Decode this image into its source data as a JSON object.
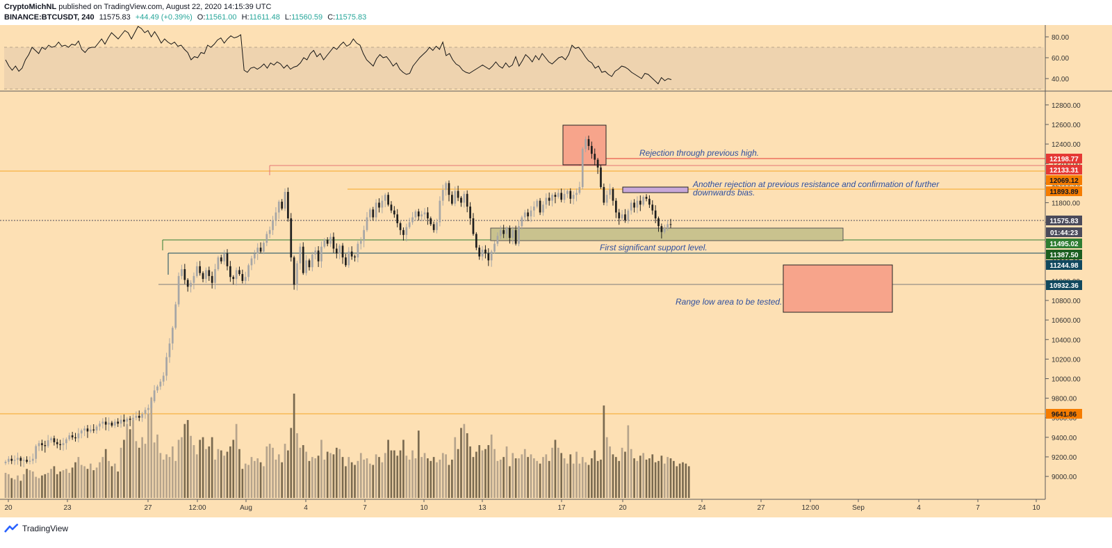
{
  "header": {
    "author": "CryptoMichNL",
    "published_text": "published on TradingView.com, August 22, 2020 14:15:39 UTC",
    "symbol": "BINANCE:BTCUSDT, 240",
    "last": "11575.83",
    "change": "+44.49 (+0.39%)",
    "o_label": "O:",
    "o_value": "11561.00",
    "h_label": "H:",
    "h_value": "11611.48",
    "l_label": "L:",
    "l_value": "11560.59",
    "c_label": "C:",
    "c_value": "11575.83"
  },
  "footer": {
    "brand": "TradingView"
  },
  "colors": {
    "background": "#fde0b4",
    "bull": "#a6a6a6",
    "bear": "#1e1e1e",
    "annotation": "#2f4f9e",
    "resistance": "#e53935",
    "support": "#1b5e20"
  },
  "chart_data": [
    {
      "type": "line",
      "panel": "RSI",
      "y_ticks": [
        "80.00",
        "60.00",
        "40.00"
      ],
      "ylim": [
        30,
        90
      ],
      "band": [
        30,
        70
      ],
      "values": [
        58,
        52,
        48,
        52,
        47,
        50,
        58,
        63,
        70,
        67,
        64,
        70,
        68,
        72,
        70,
        71,
        75,
        71,
        72,
        70,
        73,
        72,
        76,
        68,
        65,
        69,
        70,
        70,
        74,
        78,
        73,
        79,
        84,
        81,
        78,
        82,
        86,
        84,
        78,
        84,
        90,
        88,
        84,
        86,
        80,
        85,
        80,
        74,
        78,
        75,
        73,
        75,
        71,
        72,
        68,
        65,
        58,
        61,
        60,
        65,
        64,
        72,
        70,
        73,
        77,
        79,
        74,
        78,
        81,
        79,
        80,
        82,
        48,
        46,
        50,
        51,
        49,
        51,
        54,
        50,
        55,
        53,
        56,
        54,
        50,
        53,
        49,
        51,
        52,
        55,
        60,
        58,
        64,
        67,
        61,
        64,
        58,
        62,
        66,
        70,
        68,
        72,
        75,
        71,
        73,
        78,
        74,
        72,
        64,
        58,
        55,
        52,
        59,
        63,
        60,
        61,
        57,
        52,
        55,
        49,
        46,
        44,
        45,
        52,
        56,
        60,
        63,
        66,
        70,
        67,
        71,
        68,
        75,
        62,
        64,
        58,
        54,
        52,
        48,
        46,
        45,
        47,
        49,
        51,
        53,
        51,
        49,
        52,
        56,
        52,
        50,
        55,
        51,
        53,
        61,
        52,
        57,
        63,
        60,
        56,
        62,
        58,
        64,
        60,
        56,
        54,
        57,
        60,
        61,
        58,
        63,
        72,
        69,
        70,
        66,
        61,
        57,
        55,
        50,
        52,
        46,
        47,
        44,
        42,
        47,
        49,
        52,
        51,
        49,
        46,
        44,
        42,
        40,
        45,
        44,
        41,
        38,
        35,
        41,
        38,
        40,
        39
      ]
    },
    {
      "type": "candlestick",
      "panel": "price",
      "y_ticks": [
        "12800.00",
        "12600.00",
        "12400.00",
        "12200.00",
        "12000.00",
        "11800.00",
        "11600.00",
        "11400.00",
        "11200.00",
        "11000.00",
        "10800.00",
        "10600.00",
        "10400.00",
        "10200.00",
        "10000.00",
        "9800.00",
        "9600.00",
        "9400.00",
        "9200.00",
        "9000.00"
      ],
      "ylim": [
        8780,
        12920
      ],
      "x_ticks": [
        "20",
        "23",
        "27",
        "12:00",
        "Aug",
        "4",
        "7",
        "10",
        "13",
        "17",
        "20",
        "24",
        "27",
        "12:00",
        "Sep",
        "4",
        "7",
        "10"
      ],
      "price_labels": [
        {
          "value": 12198.77,
          "label": "12198.77",
          "color": "#e53935"
        },
        {
          "value": 12133.31,
          "label": "12133.31",
          "color": "#e53935"
        },
        {
          "value": 12069.12,
          "label": "12069.12",
          "color": "#f57c00"
        },
        {
          "value": 11893.89,
          "label": "11893.89",
          "color": "#f57c00"
        },
        {
          "value": 11575.83,
          "label": "11575.83",
          "color": "#4a4a5a"
        },
        {
          "value": 11495.02,
          "label": "01:44:23",
          "color": "#4a4a5a"
        },
        {
          "value": 11387.5,
          "label": "11495.02",
          "color": "#2e7d32"
        },
        {
          "value": 11244.98,
          "label": "11387.50",
          "color": "#1b5e20"
        },
        {
          "value": 11100.0,
          "label": "11244.98",
          "color": "#10485e"
        },
        {
          "value": 10932.36,
          "label": "10932.36",
          "color": "#10485e"
        },
        {
          "value": 9641.86,
          "label": "9641.86",
          "color": "#f57c00"
        }
      ],
      "annotations": [
        "Rejection through previous high.",
        "Another rejection at previous resistance and confirmation of further",
        "downwards bias.",
        "First significant support level.",
        "Range low area to be tested."
      ],
      "closes": [
        9150,
        9180,
        9160,
        9170,
        9190,
        9160,
        9170,
        9150,
        9160,
        9180,
        9310,
        9340,
        9320,
        9310,
        9370,
        9390,
        9350,
        9330,
        9320,
        9340,
        9380,
        9420,
        9400,
        9390,
        9440,
        9470,
        9490,
        9460,
        9480,
        9470,
        9510,
        9540,
        9560,
        9530,
        9550,
        9520,
        9560,
        9540,
        9580,
        9560,
        9590,
        9580,
        9600,
        9620,
        9600,
        9640,
        9680,
        9700,
        9770,
        9880,
        9920,
        9970,
        10030,
        10220,
        10360,
        10520,
        10760,
        11050,
        11120,
        11010,
        10940,
        10980,
        11050,
        11150,
        11080,
        11020,
        11110,
        11050,
        10980,
        11120,
        11240,
        11200,
        11280,
        11150,
        11040,
        11020,
        11110,
        11070,
        11000,
        11040,
        11160,
        11230,
        11280,
        11340,
        11300,
        11390,
        11480,
        11520,
        11620,
        11700,
        11810,
        11740,
        11910,
        11640,
        11240,
        10960,
        11180,
        11350,
        11080,
        11210,
        11140,
        11270,
        11310,
        11200,
        11350,
        11420,
        11380,
        11450,
        11330,
        11280,
        11360,
        11240,
        11160,
        11300,
        11250,
        11240,
        11380,
        11410,
        11520,
        11650,
        11730,
        11650,
        11800,
        11750,
        11820,
        11880,
        11780,
        11720,
        11680,
        11590,
        11520,
        11470,
        11550,
        11600,
        11650,
        11710,
        11660,
        11680,
        11700,
        11640,
        11580,
        11520,
        11600,
        11820,
        11930,
        12000,
        11880,
        11790,
        11920,
        11850,
        11800,
        11890,
        11760,
        11640,
        11480,
        11340,
        11250,
        11320,
        11280,
        11210,
        11300,
        11380,
        11460,
        11520,
        11480,
        11540,
        11440,
        11520,
        11380,
        11560,
        11650,
        11700,
        11660,
        11720,
        11760,
        11820,
        11700,
        11780,
        11850,
        11820,
        11880,
        11860,
        11900,
        11830,
        11890,
        11920,
        11840,
        11880,
        11900,
        11960,
        12350,
        12450,
        12380,
        12300,
        12240,
        12160,
        11960,
        11800,
        11880,
        11940,
        11820,
        11700,
        11640,
        11680,
        11620,
        11720,
        11800,
        11750,
        11820,
        11780,
        11860,
        11840,
        11780,
        11720,
        11640,
        11560,
        11500,
        11540,
        11580,
        11575
      ],
      "volumes": [
        19,
        18,
        15,
        14,
        17,
        13,
        18,
        22,
        21,
        20,
        16,
        15,
        17,
        18,
        19,
        22,
        24,
        18,
        20,
        21,
        22,
        19,
        23,
        27,
        31,
        25,
        24,
        22,
        26,
        21,
        23,
        27,
        31,
        37,
        28,
        24,
        26,
        20,
        38,
        44,
        56,
        52,
        59,
        43,
        38,
        46,
        41,
        64,
        76,
        42,
        48,
        34,
        29,
        33,
        31,
        39,
        28,
        44,
        46,
        56,
        59,
        47,
        40,
        33,
        44,
        46,
        37,
        39,
        46,
        29,
        37,
        36,
        32,
        35,
        39,
        44,
        56,
        37,
        22,
        26,
        25,
        31,
        28,
        30,
        27,
        24,
        39,
        41,
        38,
        29,
        33,
        27,
        41,
        36,
        53,
        79,
        49,
        38,
        40,
        35,
        28,
        31,
        30,
        32,
        44,
        29,
        35,
        34,
        33,
        38,
        37,
        31,
        24,
        31,
        27,
        25,
        28,
        34,
        29,
        30,
        26,
        25,
        33,
        31,
        27,
        34,
        44,
        36,
        36,
        32,
        36,
        44,
        32,
        29,
        36,
        30,
        51,
        31,
        34,
        30,
        28,
        31,
        27,
        29,
        34,
        33,
        25,
        29,
        46,
        37,
        53,
        56,
        49,
        39,
        31,
        35,
        40,
        36,
        37,
        40,
        48,
        37,
        28,
        29,
        31,
        39,
        24,
        34,
        30,
        30,
        33,
        37,
        31,
        33,
        30,
        28,
        26,
        31,
        33,
        28,
        38,
        44,
        38,
        34,
        30,
        26,
        33,
        26,
        35,
        26,
        31,
        27,
        25,
        30,
        36,
        28,
        29,
        70,
        46,
        39,
        33,
        31,
        28,
        38,
        35,
        55,
        37,
        30,
        28,
        32,
        34,
        29,
        30,
        33,
        27,
        28,
        32,
        26,
        31,
        30,
        28,
        24,
        26,
        27,
        26,
        24
      ]
    }
  ]
}
